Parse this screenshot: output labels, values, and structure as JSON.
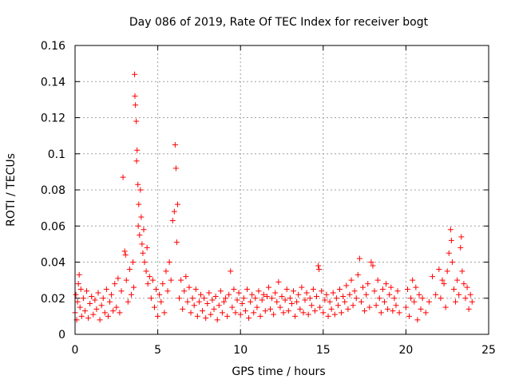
{
  "chart_data": {
    "type": "scatter",
    "title": "Day 086 of 2019, Rate Of TEC Index for receiver bogt",
    "xlabel": "GPS time / hours",
    "ylabel": "ROTI / TECUs",
    "xlim": [
      0,
      25
    ],
    "ylim": [
      0,
      0.16
    ],
    "x_ticks": [
      {
        "value": 0,
        "label": "0"
      },
      {
        "value": 5,
        "label": "5"
      },
      {
        "value": 10,
        "label": "10"
      },
      {
        "value": 15,
        "label": "15"
      },
      {
        "value": 20,
        "label": "20"
      },
      {
        "value": 25,
        "label": "25"
      }
    ],
    "y_ticks": [
      {
        "value": 0,
        "label": "0"
      },
      {
        "value": 0.02,
        "label": "0.02"
      },
      {
        "value": 0.04,
        "label": "0.04"
      },
      {
        "value": 0.06,
        "label": "0.06"
      },
      {
        "value": 0.08,
        "label": "0.08"
      },
      {
        "value": 0.1,
        "label": "0.1"
      },
      {
        "value": 0.12,
        "label": "0.12"
      },
      {
        "value": 0.14,
        "label": "0.14"
      },
      {
        "value": 0.16,
        "label": "0.16"
      }
    ],
    "grid": true,
    "marker": "+",
    "color": "#ff0000",
    "data_gap_hours": [
      19.6,
      19.9
    ],
    "series": [
      {
        "name": "ROTI",
        "points": [
          [
            0.0,
            0.012
          ],
          [
            0.05,
            0.022
          ],
          [
            0.1,
            0.008
          ],
          [
            0.15,
            0.018
          ],
          [
            0.2,
            0.028
          ],
          [
            0.25,
            0.033
          ],
          [
            0.3,
            0.015
          ],
          [
            0.35,
            0.025
          ],
          [
            0.4,
            0.01
          ],
          [
            0.5,
            0.02
          ],
          [
            0.6,
            0.013
          ],
          [
            0.7,
            0.024
          ],
          [
            0.8,
            0.009
          ],
          [
            0.9,
            0.017
          ],
          [
            1.0,
            0.021
          ],
          [
            1.1,
            0.011
          ],
          [
            1.2,
            0.019
          ],
          [
            1.3,
            0.014
          ],
          [
            1.4,
            0.023
          ],
          [
            1.5,
            0.008
          ],
          [
            1.6,
            0.016
          ],
          [
            1.7,
            0.02
          ],
          [
            1.8,
            0.012
          ],
          [
            1.9,
            0.025
          ],
          [
            2.0,
            0.01
          ],
          [
            2.1,
            0.018
          ],
          [
            2.2,
            0.022
          ],
          [
            2.3,
            0.013
          ],
          [
            2.4,
            0.028
          ],
          [
            2.5,
            0.015
          ],
          [
            2.6,
            0.031
          ],
          [
            2.7,
            0.012
          ],
          [
            2.8,
            0.024
          ],
          [
            2.9,
            0.087
          ],
          [
            3.0,
            0.046
          ],
          [
            3.05,
            0.044
          ],
          [
            3.1,
            0.03
          ],
          [
            3.2,
            0.018
          ],
          [
            3.3,
            0.036
          ],
          [
            3.4,
            0.022
          ],
          [
            3.5,
            0.04
          ],
          [
            3.55,
            0.026
          ],
          [
            3.6,
            0.144
          ],
          [
            3.62,
            0.132
          ],
          [
            3.65,
            0.127
          ],
          [
            3.7,
            0.118
          ],
          [
            3.72,
            0.096
          ],
          [
            3.75,
            0.102
          ],
          [
            3.8,
            0.083
          ],
          [
            3.82,
            0.06
          ],
          [
            3.85,
            0.072
          ],
          [
            3.9,
            0.055
          ],
          [
            3.95,
            0.08
          ],
          [
            4.0,
            0.065
          ],
          [
            4.05,
            0.05
          ],
          [
            4.1,
            0.045
          ],
          [
            4.15,
            0.058
          ],
          [
            4.2,
            0.04
          ],
          [
            4.3,
            0.035
          ],
          [
            4.35,
            0.048
          ],
          [
            4.4,
            0.028
          ],
          [
            4.5,
            0.032
          ],
          [
            4.6,
            0.02
          ],
          [
            4.7,
            0.03
          ],
          [
            4.8,
            0.015
          ],
          [
            4.9,
            0.025
          ],
          [
            5.0,
            0.01
          ],
          [
            5.1,
            0.022
          ],
          [
            5.2,
            0.018
          ],
          [
            5.3,
            0.028
          ],
          [
            5.4,
            0.012
          ],
          [
            5.5,
            0.035
          ],
          [
            5.6,
            0.024
          ],
          [
            5.7,
            0.04
          ],
          [
            5.8,
            0.03
          ],
          [
            5.9,
            0.063
          ],
          [
            6.0,
            0.068
          ],
          [
            6.05,
            0.105
          ],
          [
            6.1,
            0.092
          ],
          [
            6.15,
            0.051
          ],
          [
            6.2,
            0.072
          ],
          [
            6.3,
            0.02
          ],
          [
            6.4,
            0.03
          ],
          [
            6.5,
            0.014
          ],
          [
            6.6,
            0.024
          ],
          [
            6.7,
            0.032
          ],
          [
            6.8,
            0.018
          ],
          [
            6.9,
            0.026
          ],
          [
            7.0,
            0.012
          ],
          [
            7.1,
            0.02
          ],
          [
            7.2,
            0.016
          ],
          [
            7.3,
            0.025
          ],
          [
            7.4,
            0.01
          ],
          [
            7.5,
            0.018
          ],
          [
            7.6,
            0.022
          ],
          [
            7.7,
            0.013
          ],
          [
            7.8,
            0.02
          ],
          [
            7.9,
            0.009
          ],
          [
            8.0,
            0.017
          ],
          [
            8.1,
            0.023
          ],
          [
            8.2,
            0.011
          ],
          [
            8.3,
            0.019
          ],
          [
            8.4,
            0.014
          ],
          [
            8.5,
            0.021
          ],
          [
            8.6,
            0.008
          ],
          [
            8.7,
            0.016
          ],
          [
            8.8,
            0.024
          ],
          [
            8.9,
            0.012
          ],
          [
            9.0,
            0.018
          ],
          [
            9.1,
            0.02
          ],
          [
            9.2,
            0.01
          ],
          [
            9.3,
            0.022
          ],
          [
            9.4,
            0.035
          ],
          [
            9.5,
            0.015
          ],
          [
            9.6,
            0.025
          ],
          [
            9.7,
            0.012
          ],
          [
            9.8,
            0.019
          ],
          [
            9.9,
            0.023
          ],
          [
            10.0,
            0.011
          ],
          [
            10.1,
            0.017
          ],
          [
            10.2,
            0.02
          ],
          [
            10.3,
            0.013
          ],
          [
            10.4,
            0.025
          ],
          [
            10.5,
            0.009
          ],
          [
            10.6,
            0.018
          ],
          [
            10.7,
            0.022
          ],
          [
            10.8,
            0.012
          ],
          [
            10.9,
            0.02
          ],
          [
            11.0,
            0.015
          ],
          [
            11.1,
            0.024
          ],
          [
            11.2,
            0.01
          ],
          [
            11.3,
            0.019
          ],
          [
            11.4,
            0.022
          ],
          [
            11.5,
            0.013
          ],
          [
            11.6,
            0.021
          ],
          [
            11.7,
            0.026
          ],
          [
            11.8,
            0.014
          ],
          [
            11.9,
            0.02
          ],
          [
            12.0,
            0.011
          ],
          [
            12.1,
            0.023
          ],
          [
            12.2,
            0.018
          ],
          [
            12.3,
            0.029
          ],
          [
            12.4,
            0.015
          ],
          [
            12.5,
            0.021
          ],
          [
            12.6,
            0.012
          ],
          [
            12.7,
            0.019
          ],
          [
            12.8,
            0.025
          ],
          [
            12.9,
            0.013
          ],
          [
            13.0,
            0.02
          ],
          [
            13.1,
            0.017
          ],
          [
            13.2,
            0.024
          ],
          [
            13.3,
            0.01
          ],
          [
            13.4,
            0.018
          ],
          [
            13.5,
            0.022
          ],
          [
            13.6,
            0.014
          ],
          [
            13.7,
            0.026
          ],
          [
            13.8,
            0.012
          ],
          [
            13.9,
            0.019
          ],
          [
            14.0,
            0.023
          ],
          [
            14.1,
            0.011
          ],
          [
            14.2,
            0.02
          ],
          [
            14.3,
            0.016
          ],
          [
            14.4,
            0.025
          ],
          [
            14.5,
            0.013
          ],
          [
            14.6,
            0.021
          ],
          [
            14.7,
            0.038
          ],
          [
            14.75,
            0.036
          ],
          [
            14.8,
            0.015
          ],
          [
            14.9,
            0.024
          ],
          [
            15.0,
            0.012
          ],
          [
            15.1,
            0.019
          ],
          [
            15.2,
            0.022
          ],
          [
            15.3,
            0.01
          ],
          [
            15.4,
            0.018
          ],
          [
            15.5,
            0.014
          ],
          [
            15.6,
            0.023
          ],
          [
            15.7,
            0.011
          ],
          [
            15.8,
            0.02
          ],
          [
            15.9,
            0.016
          ],
          [
            16.0,
            0.025
          ],
          [
            16.1,
            0.012
          ],
          [
            16.2,
            0.021
          ],
          [
            16.3,
            0.018
          ],
          [
            16.4,
            0.027
          ],
          [
            16.5,
            0.014
          ],
          [
            16.6,
            0.022
          ],
          [
            16.7,
            0.03
          ],
          [
            16.8,
            0.016
          ],
          [
            16.9,
            0.024
          ],
          [
            17.0,
            0.02
          ],
          [
            17.1,
            0.033
          ],
          [
            17.2,
            0.042
          ],
          [
            17.3,
            0.018
          ],
          [
            17.4,
            0.026
          ],
          [
            17.5,
            0.013
          ],
          [
            17.6,
            0.022
          ],
          [
            17.7,
            0.028
          ],
          [
            17.8,
            0.015
          ],
          [
            17.9,
            0.04
          ],
          [
            18.0,
            0.038
          ],
          [
            18.1,
            0.024
          ],
          [
            18.2,
            0.016
          ],
          [
            18.3,
            0.03
          ],
          [
            18.4,
            0.02
          ],
          [
            18.5,
            0.012
          ],
          [
            18.6,
            0.025
          ],
          [
            18.7,
            0.018
          ],
          [
            18.8,
            0.028
          ],
          [
            18.9,
            0.014
          ],
          [
            19.0,
            0.022
          ],
          [
            19.1,
            0.026
          ],
          [
            19.2,
            0.013
          ],
          [
            19.3,
            0.02
          ],
          [
            19.4,
            0.016
          ],
          [
            19.5,
            0.024
          ],
          [
            19.6,
            0.012
          ],
          [
            20.0,
            0.015
          ],
          [
            20.1,
            0.025
          ],
          [
            20.2,
            0.01
          ],
          [
            20.3,
            0.02
          ],
          [
            20.4,
            0.03
          ],
          [
            20.5,
            0.018
          ],
          [
            20.6,
            0.026
          ],
          [
            20.7,
            0.008
          ],
          [
            20.8,
            0.022
          ],
          [
            20.9,
            0.014
          ],
          [
            21.0,
            0.02
          ],
          [
            21.2,
            0.012
          ],
          [
            21.4,
            0.018
          ],
          [
            21.6,
            0.032
          ],
          [
            21.8,
            0.022
          ],
          [
            22.0,
            0.036
          ],
          [
            22.1,
            0.02
          ],
          [
            22.2,
            0.03
          ],
          [
            22.3,
            0.028
          ],
          [
            22.4,
            0.015
          ],
          [
            22.5,
            0.035
          ],
          [
            22.6,
            0.045
          ],
          [
            22.7,
            0.058
          ],
          [
            22.75,
            0.052
          ],
          [
            22.8,
            0.04
          ],
          [
            22.9,
            0.025
          ],
          [
            23.0,
            0.018
          ],
          [
            23.1,
            0.03
          ],
          [
            23.2,
            0.022
          ],
          [
            23.3,
            0.048
          ],
          [
            23.35,
            0.054
          ],
          [
            23.4,
            0.035
          ],
          [
            23.5,
            0.028
          ],
          [
            23.6,
            0.02
          ],
          [
            23.7,
            0.026
          ],
          [
            23.8,
            0.014
          ],
          [
            23.9,
            0.022
          ],
          [
            24.0,
            0.018
          ]
        ]
      }
    ]
  }
}
